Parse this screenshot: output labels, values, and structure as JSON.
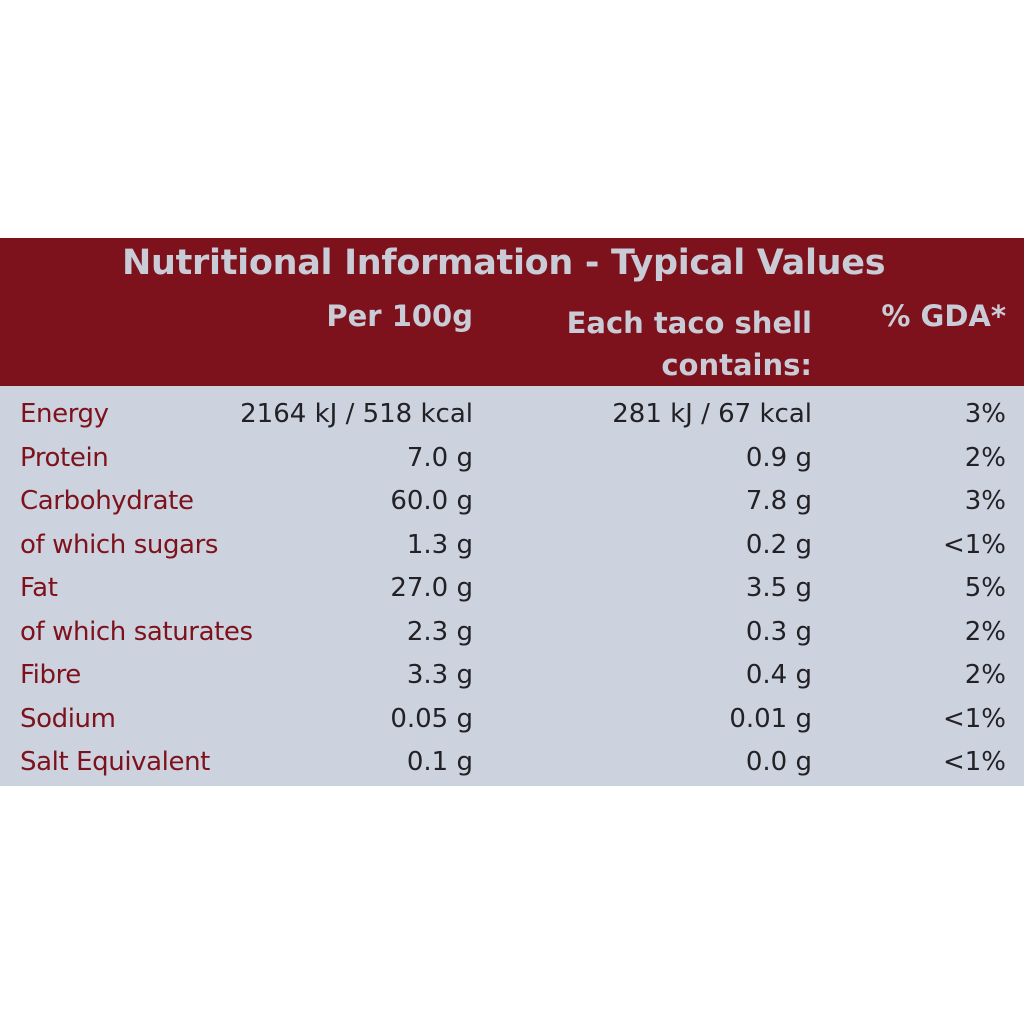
{
  "label": {
    "title": "Nutritional Information - Typical Values",
    "columns": {
      "per_100g": "Per 100g",
      "each_shell_line1": "Each taco shell",
      "each_shell_line2": "contains:",
      "gda": "% GDA*"
    },
    "rows": [
      {
        "name": "Energy",
        "per_100g": "2164 kJ / 518 kcal",
        "each_shell": "281 kJ / 67 kcal",
        "gda": "3%"
      },
      {
        "name": "Protein",
        "per_100g": "7.0 g",
        "each_shell": "0.9 g",
        "gda": "2%"
      },
      {
        "name": "Carbohydrate",
        "per_100g": "60.0 g",
        "each_shell": "7.8 g",
        "gda": "3%"
      },
      {
        "name": "of which sugars",
        "per_100g": "1.3 g",
        "each_shell": "0.2 g",
        "gda": "<1%"
      },
      {
        "name": "Fat",
        "per_100g": "27.0 g",
        "each_shell": "3.5 g",
        "gda": "5%"
      },
      {
        "name": "of which saturates",
        "per_100g": "2.3 g",
        "each_shell": "0.3 g",
        "gda": "2%"
      },
      {
        "name": "Fibre",
        "per_100g": "3.3 g",
        "each_shell": "0.4 g",
        "gda": "2%"
      },
      {
        "name": "Sodium",
        "per_100g": "0.05 g",
        "each_shell": "0.01 g",
        "gda": "<1%"
      },
      {
        "name": "Salt Equivalent",
        "per_100g": "0.1 g",
        "each_shell": "0.0 g",
        "gda": "<1%"
      }
    ]
  },
  "colors": {
    "header_bg": "#7e121c",
    "header_text": "#c9ccd6",
    "body_bg": "#ccd2de",
    "nutrient_name": "#7e121c",
    "value_text": "#222226"
  }
}
